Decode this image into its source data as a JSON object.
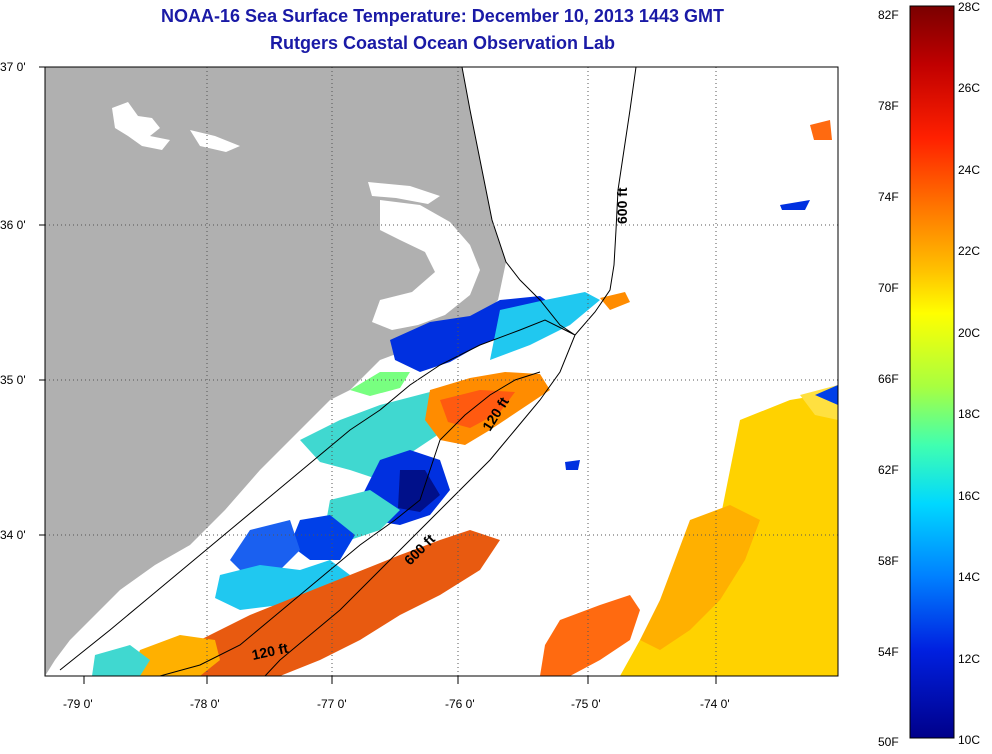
{
  "title": {
    "line1": "NOAA-16 Sea Surface Temperature:  December 10, 2013 1443 GMT",
    "line2": "Rutgers Coastal Ocean Observation Lab"
  },
  "map": {
    "lat_labels": [
      "37 0'",
      "36 0'",
      "35 0'",
      "34 0'"
    ],
    "lon_labels": [
      "-79 0'",
      "-78 0'",
      "-77 0'",
      "-76 0'",
      "-75 0'",
      "-74 0'"
    ],
    "contours": [
      {
        "label": "600 ft"
      },
      {
        "label": "120 ft"
      },
      {
        "label": "600 ft"
      },
      {
        "label": "120 ft"
      }
    ],
    "colors": {
      "land": "#b0b0b0",
      "cloud": "#ffffff",
      "frame": "#000000"
    }
  },
  "colorbar": {
    "fahrenheit": [
      "82F",
      "78F",
      "74F",
      "70F",
      "66F",
      "62F",
      "58F",
      "54F",
      "50F"
    ],
    "celsius": [
      "28C",
      "26C",
      "24C",
      "22C",
      "20C",
      "18C",
      "16C",
      "14C",
      "12C",
      "10C"
    ],
    "colors": [
      "#7a0000",
      "#d40000",
      "#ff3a00",
      "#ff8c00",
      "#ffd200",
      "#d8ff20",
      "#78ff80",
      "#20d8e8",
      "#0090ff",
      "#0030e0",
      "#00008a"
    ]
  }
}
